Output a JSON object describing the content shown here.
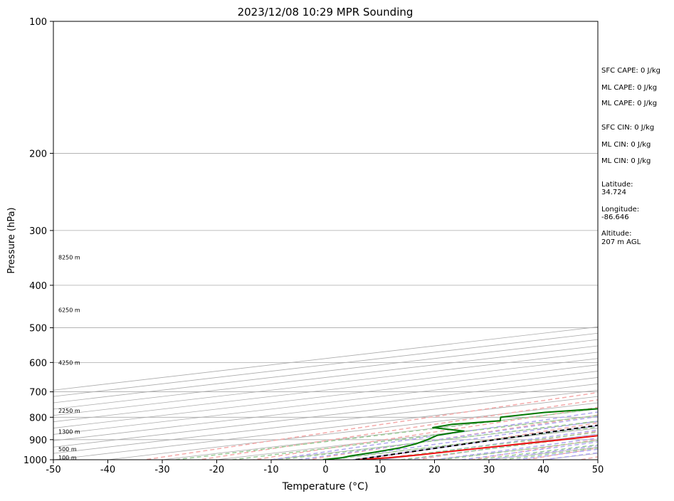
{
  "chart_data": {
    "type": "line",
    "subtype": "skew-t-log-p",
    "title": "2023/12/08 10:29 MPR Sounding",
    "xlabel": "Temperature (°C)",
    "ylabel": "Pressure (hPa)",
    "xlim": [
      -50,
      50
    ],
    "ylim": [
      1000,
      100
    ],
    "y_scale": "log",
    "x_ticks": [
      -50,
      -40,
      -30,
      -20,
      -10,
      0,
      10,
      20,
      30,
      40,
      50
    ],
    "y_ticks": [
      1000,
      900,
      800,
      700,
      600,
      500,
      400,
      300,
      200,
      100
    ],
    "isobars": [
      1000,
      900,
      800,
      700,
      600,
      500,
      400,
      300,
      200,
      100
    ],
    "isotherms": [
      -160,
      -150,
      -140,
      -130,
      -120,
      -110,
      -100,
      -90,
      -80,
      -70,
      -60,
      -50,
      -40,
      -30,
      -20,
      -10,
      0,
      10,
      20,
      30,
      40,
      50
    ],
    "dry_adiabats_theta": [
      240,
      250,
      260,
      270,
      280,
      290,
      300,
      310,
      320,
      330,
      340,
      350,
      360,
      370,
      380,
      390,
      400,
      420,
      440,
      460,
      480,
      500
    ],
    "moist_adiabats_t0": [
      -10,
      -5,
      0,
      5,
      10,
      15,
      20,
      25,
      30,
      35,
      40
    ],
    "mixing_ratios": [
      0.4,
      1,
      2,
      4,
      7,
      10,
      16,
      24,
      32
    ],
    "height_labels": [
      {
        "label": "100 m",
        "p": 989
      },
      {
        "label": "500 m",
        "p": 945
      },
      {
        "label": "1300 m",
        "p": 862
      },
      {
        "label": "2250 m",
        "p": 772
      },
      {
        "label": "4250 m",
        "p": 600
      },
      {
        "label": "6250 m",
        "p": 455
      },
      {
        "label": "8250 m",
        "p": 345
      }
    ],
    "series": [
      {
        "color": "#ee1111",
        "points": [
          [
            1000,
            5.5
          ],
          [
            990,
            8.5
          ],
          [
            975,
            9.5
          ],
          [
            950,
            10.0
          ],
          [
            925,
            10.8
          ],
          [
            900,
            11.8
          ],
          [
            880,
            12.0
          ],
          [
            850,
            11.4
          ],
          [
            825,
            10.7
          ],
          [
            800,
            10.1
          ],
          [
            780,
            9.3
          ],
          [
            750,
            7.0
          ],
          [
            720,
            4.4
          ],
          [
            700,
            2.8
          ],
          [
            680,
            1.5
          ],
          [
            670,
            0.8
          ],
          [
            650,
            -0.5
          ],
          [
            600,
            -4.5
          ],
          [
            550,
            -7.8
          ],
          [
            500,
            -11.0
          ],
          [
            450,
            -15.5
          ],
          [
            400,
            -20.3
          ],
          [
            350,
            -25.8
          ],
          [
            325,
            -28.8
          ],
          [
            300,
            -32.5
          ],
          [
            285,
            -35.6
          ],
          [
            275,
            -38.7
          ],
          [
            265,
            -40.8
          ]
        ]
      },
      {
        "color": "#007700",
        "points": [
          [
            1000,
            -0.5
          ],
          [
            990,
            -0.1
          ],
          [
            980,
            -1.5
          ],
          [
            960,
            -3.0
          ],
          [
            940,
            -5.0
          ],
          [
            920,
            -8.5
          ],
          [
            900,
            -13.0
          ],
          [
            880,
            -18.0
          ],
          [
            860,
            -20.0
          ],
          [
            845,
            -31.0
          ],
          [
            830,
            -32.8
          ],
          [
            815,
            -29.5
          ],
          [
            800,
            -35.0
          ],
          [
            780,
            -34.5
          ],
          [
            765,
            -30.5
          ],
          [
            740,
            -16.0
          ],
          [
            720,
            -8.8
          ],
          [
            705,
            -3.2
          ],
          [
            685,
            0.5
          ],
          [
            670,
            2.3
          ],
          [
            650,
            0.5
          ],
          [
            600,
            -4.5
          ],
          [
            550,
            -7.8
          ],
          [
            500,
            -11.0
          ],
          [
            450,
            -15.5
          ],
          [
            400,
            -20.3
          ],
          [
            350,
            -26.0
          ],
          [
            330,
            -28.8
          ],
          [
            320,
            -36.5
          ],
          [
            314,
            -38.2
          ],
          [
            305,
            -38.4
          ],
          [
            302,
            -40.0
          ],
          [
            295,
            -55.0
          ],
          [
            290,
            -67.0
          ],
          [
            287,
            -74.0
          ]
        ]
      },
      {
        "color": "#000000",
        "dashed": true,
        "points": [
          [
            1000,
            5.5
          ],
          [
            950,
            2.5
          ],
          [
            900,
            -0.5
          ],
          [
            850,
            -3.5
          ],
          [
            800,
            -6.5
          ],
          [
            750,
            -10.3
          ],
          [
            700,
            -14.5
          ],
          [
            650,
            -19.5
          ],
          [
            600,
            -25.0
          ],
          [
            550,
            -31.0
          ],
          [
            500,
            -37.5
          ],
          [
            450,
            -44.5
          ],
          [
            400,
            -52.5
          ],
          [
            350,
            -61.5
          ],
          [
            300,
            -72.5
          ],
          [
            265,
            -79.0
          ]
        ]
      }
    ]
  },
  "side_info": [
    {
      "id": "sfc-cape",
      "text": "SFC CAPE: 0 J/kg"
    },
    {
      "id": "ml-cape-1",
      "text": "ML CAPE: 0 J/kg"
    },
    {
      "id": "ml-cape-2",
      "text": "ML CAPE: 0 J/kg"
    },
    {
      "id": "sfc-cin",
      "text": "SFC CIN: 0 J/kg"
    },
    {
      "id": "ml-cin-1",
      "text": "ML CIN: 0 J/kg"
    },
    {
      "id": "ml-cin-2",
      "text": "ML CIN: 0 J/kg"
    },
    {
      "id": "latitude-label",
      "text": "Latitude:"
    },
    {
      "id": "latitude-value",
      "text": "34.724"
    },
    {
      "id": "longitude-label",
      "text": "Longitude:"
    },
    {
      "id": "longitude-value",
      "text": "-86.646"
    },
    {
      "id": "altitude-label",
      "text": "Altitude:"
    },
    {
      "id": "altitude-value",
      "text": "207 m AGL"
    }
  ],
  "colors": {
    "isobar": "#aaaaaa",
    "isotherm": "#aaaaaa",
    "dry_adiabat": "#f4aaaa",
    "moist_adiabat": "#b0a8f0",
    "mixing_ratio": "#9ccc98",
    "temperature": "#ee1111",
    "dewpoint": "#007700",
    "parcel": "#000000"
  }
}
